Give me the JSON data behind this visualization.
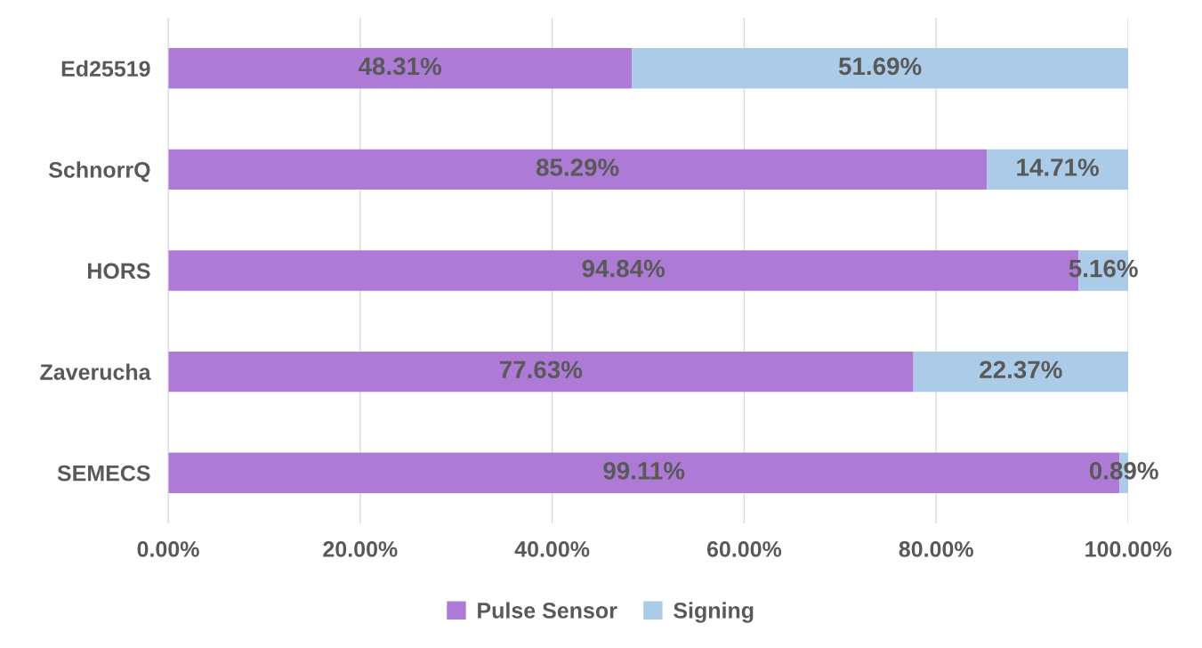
{
  "chart_data": {
    "type": "bar",
    "orientation": "horizontal",
    "stacked": true,
    "categories": [
      "Ed25519",
      "SchnorrQ",
      "HORS",
      "Zaverucha",
      "SEMECS"
    ],
    "series": [
      {
        "name": "Pulse Sensor",
        "color": "#ad7bd6",
        "values": [
          48.31,
          85.29,
          94.84,
          77.63,
          99.11
        ],
        "value_labels": [
          "48.31%",
          "85.29%",
          "94.84%",
          "77.63%",
          "99.11%"
        ]
      },
      {
        "name": "Signing",
        "color": "#abcbe8",
        "values": [
          51.69,
          14.71,
          5.16,
          22.37,
          0.89
        ],
        "value_labels": [
          "51.69%",
          "14.71%",
          "5.16%",
          "22.37%",
          "0.89%"
        ]
      }
    ],
    "xlim": [
      0,
      100
    ],
    "xticks": [
      {
        "value": 0,
        "label": "0.00%"
      },
      {
        "value": 20,
        "label": "20.00%"
      },
      {
        "value": 40,
        "label": "40.00%"
      },
      {
        "value": 60,
        "label": "60.00%"
      },
      {
        "value": 80,
        "label": "80.00%"
      },
      {
        "value": 100,
        "label": "100.00%"
      }
    ],
    "grid": "x",
    "legend": "bottom"
  }
}
